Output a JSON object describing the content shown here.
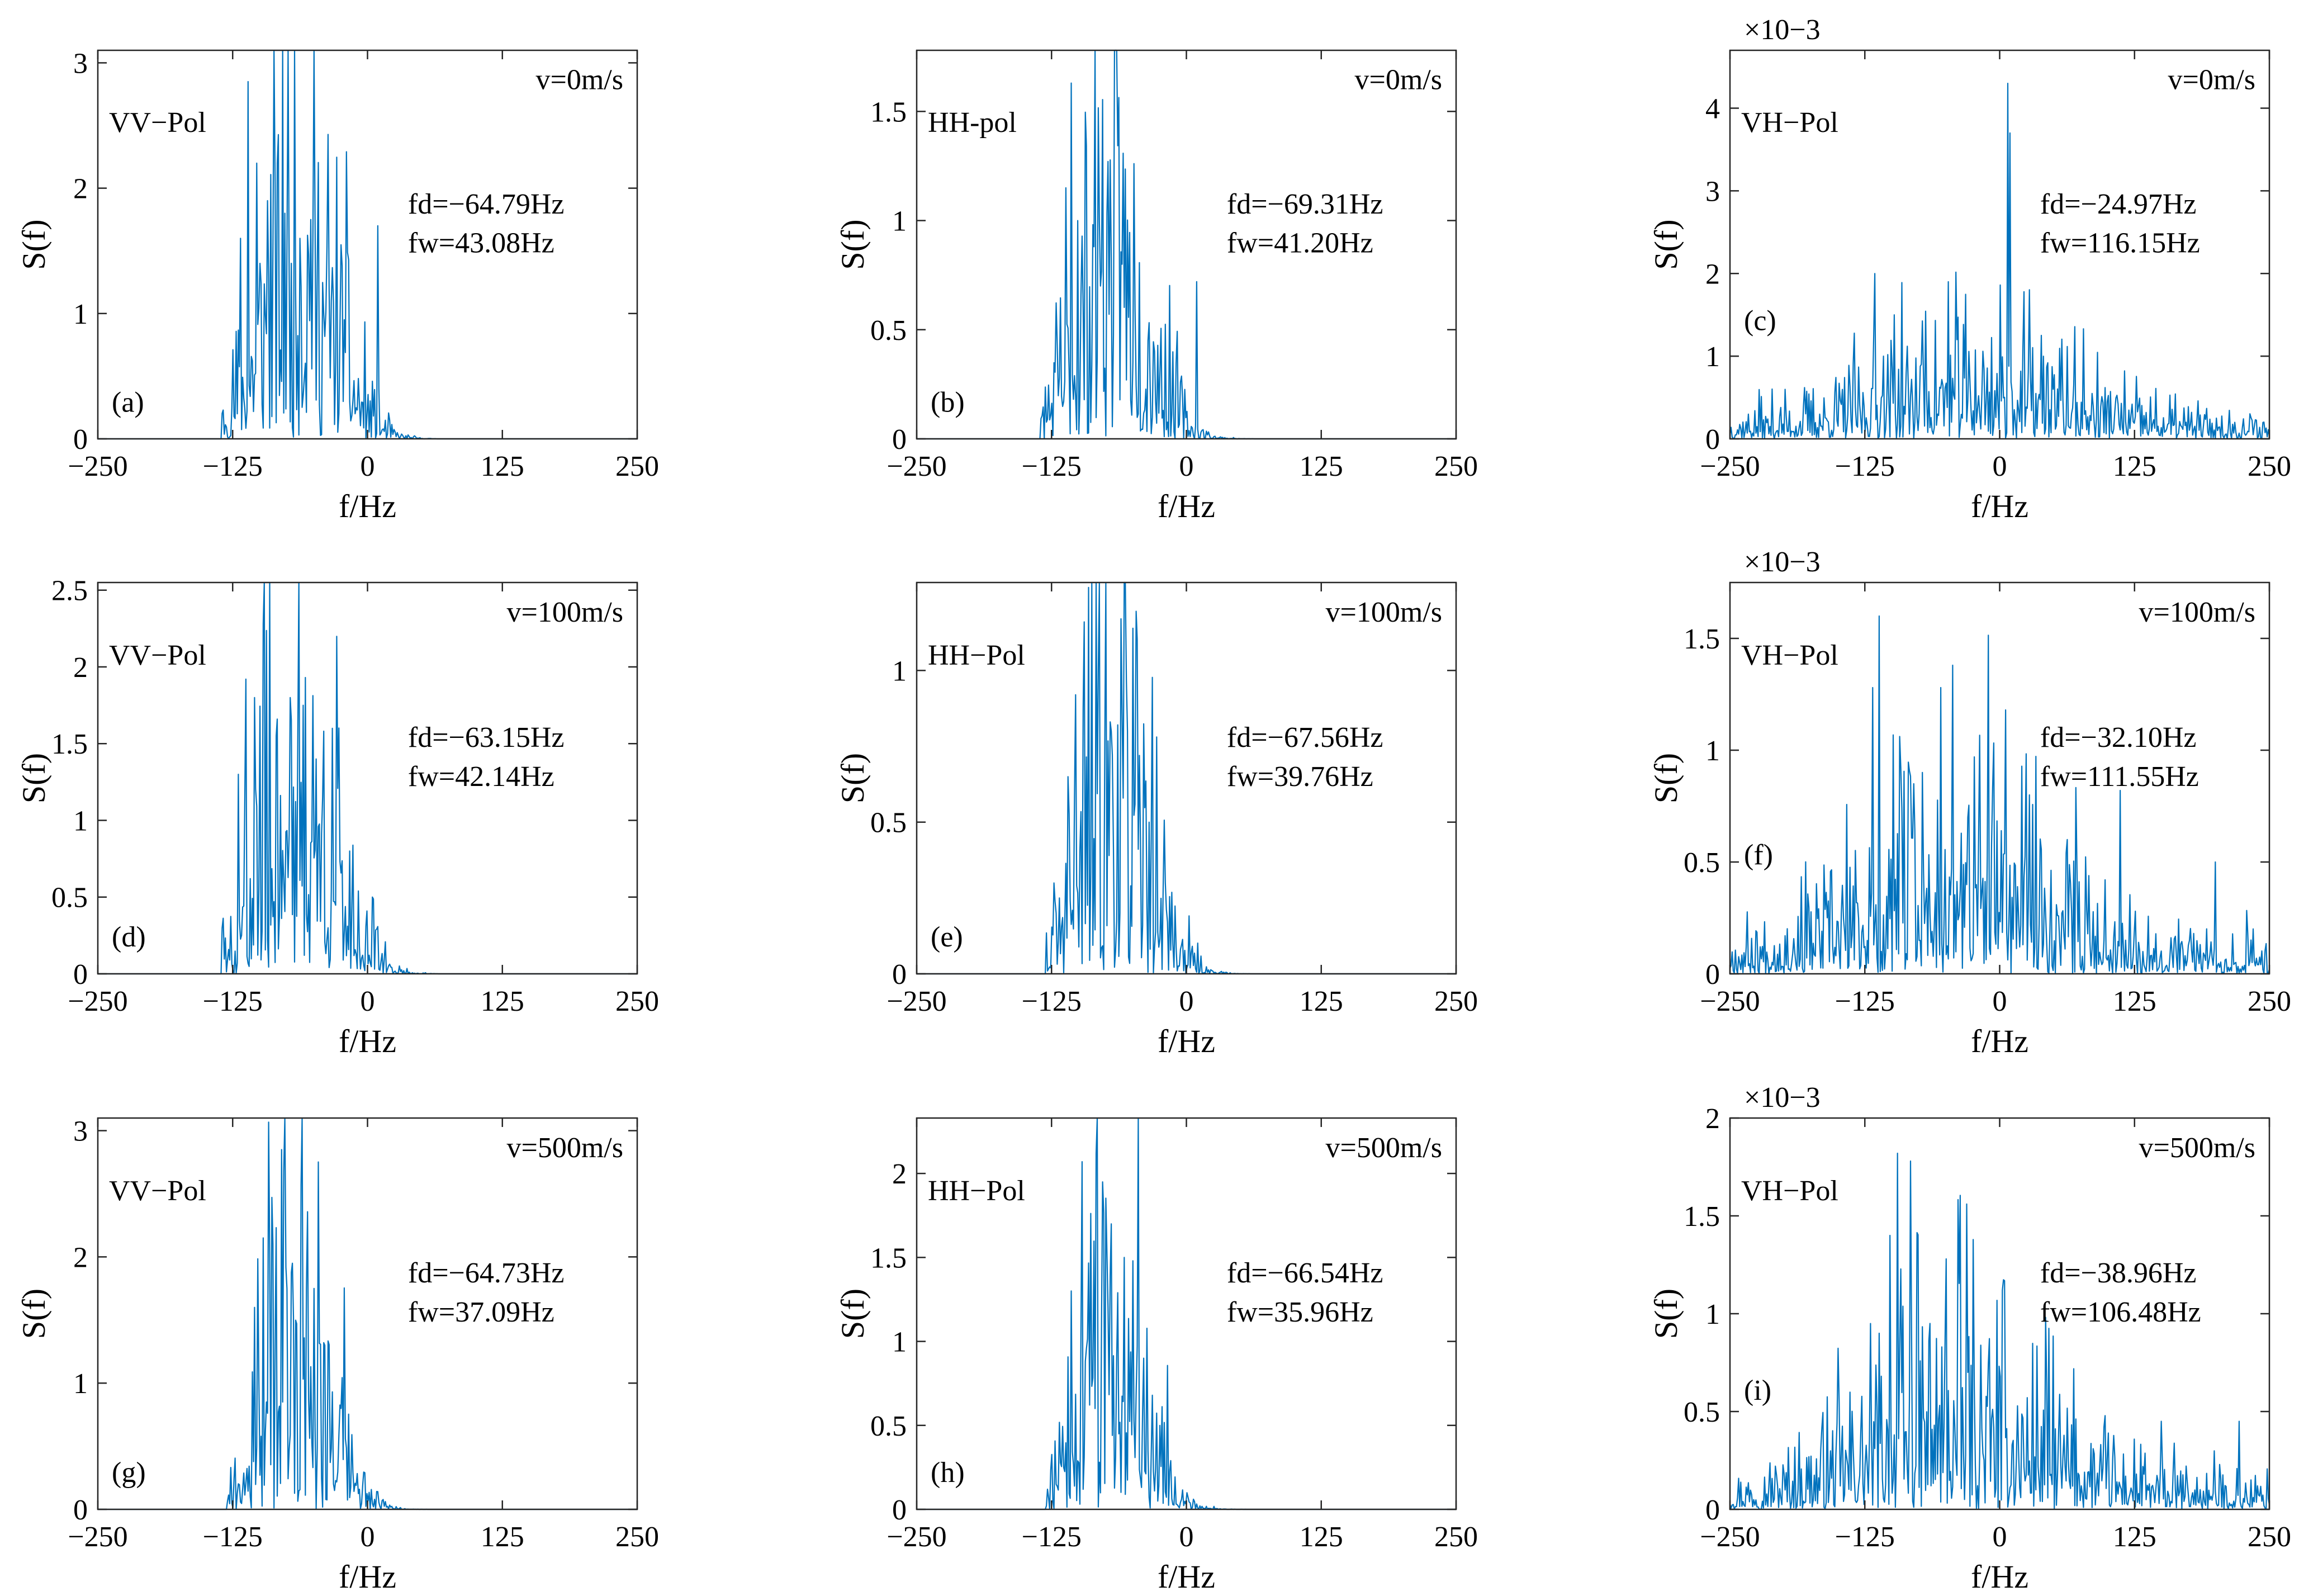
{
  "figure": {
    "type": "grid",
    "rows": 3,
    "cols": 3
  },
  "chart_data": [
    {
      "panel": "a",
      "type": "line",
      "pol_label": "VV−Pol",
      "panel_label": "(a)",
      "velocity": "v=0m/s",
      "fd": "fd=−64.79Hz",
      "fw": "fw=43.08Hz",
      "xlabel": "f/Hz",
      "ylabel": "S(f)",
      "xlim": [
        -250,
        250
      ],
      "ylim": [
        0,
        3.1
      ],
      "xticks": [
        -250,
        -125,
        0,
        125,
        250
      ],
      "xticklabels": [
        "−250",
        "−125",
        "0",
        "125",
        "250"
      ],
      "yticks": [
        0,
        1,
        2,
        3
      ],
      "yticklabels": [
        "0",
        "1",
        "2",
        "3"
      ],
      "exponent": "",
      "spectrum": {
        "center": -65,
        "width": 43,
        "peak": 2.85,
        "floor": 0.0,
        "support": [
          -135,
          65
        ],
        "seed": 11,
        "spikes": [
          [
            -111,
            2.85
          ],
          [
            -103,
            2.2
          ],
          [
            -84,
            2.2
          ],
          [
            -93,
            1.9
          ],
          [
            -77,
            1.8
          ],
          [
            -63,
            1.6
          ],
          [
            -53,
            1.75
          ],
          [
            -36,
            1.2
          ],
          [
            -22,
            0.95
          ],
          [
            10,
            1.7
          ],
          [
            -118,
            1.6
          ],
          [
            -100,
            1.4
          ],
          [
            -71,
            1.4
          ]
        ]
      }
    },
    {
      "panel": "b",
      "type": "line",
      "pol_label": "HH-pol",
      "panel_label": "(b)",
      "velocity": "v=0m/s",
      "fd": "fd=−69.31Hz",
      "fw": "fw=41.20Hz",
      "xlabel": "f/Hz",
      "ylabel": "S(f)",
      "xlim": [
        -250,
        250
      ],
      "ylim": [
        0,
        1.78
      ],
      "xticks": [
        -250,
        -125,
        0,
        125,
        250
      ],
      "xticklabels": [
        "−250",
        "−125",
        "0",
        "125",
        "250"
      ],
      "yticks": [
        0,
        0.5,
        1,
        1.5
      ],
      "yticklabels": [
        "0",
        "0.5",
        "1",
        "1.5"
      ],
      "exponent": "",
      "spectrum": {
        "center": -69,
        "width": 41,
        "peak": 1.63,
        "floor": 0.0,
        "support": [
          -135,
          62
        ],
        "seed": 23,
        "spikes": [
          [
            -107,
            1.63
          ],
          [
            -112,
            1.15
          ],
          [
            -101,
            1.0
          ],
          [
            -86,
            0.88
          ],
          [
            -70,
            0.82
          ],
          [
            -60,
            0.8
          ],
          [
            -80,
            0.7
          ],
          [
            -48,
            0.6
          ],
          [
            10,
            0.72
          ],
          [
            -30,
            0.4
          ]
        ]
      }
    },
    {
      "panel": "c",
      "type": "line",
      "pol_label": "VH−Pol",
      "panel_label": "(c)",
      "velocity": "v=0m/s",
      "fd": "fd=−24.97Hz",
      "fw": "fw=116.15Hz",
      "xlabel": "f/Hz",
      "ylabel": "S(f)",
      "xlim": [
        -250,
        250
      ],
      "ylim": [
        0,
        0.0047
      ],
      "xticks": [
        -250,
        -125,
        0,
        125,
        250
      ],
      "xticklabels": [
        "−250",
        "−125",
        "0",
        "125",
        "250"
      ],
      "yticks": [
        0,
        0.001,
        0.002,
        0.003,
        0.004
      ],
      "yticklabels": [
        "0",
        "1",
        "2",
        "3",
        "4"
      ],
      "exponent": "×10−3",
      "spectrum": {
        "center": -25,
        "width": 116,
        "peak": 0.0009,
        "floor": 0.00022,
        "support": [
          -250,
          250
        ],
        "seed": 37,
        "spikes": [
          [
            8,
            0.0043
          ],
          [
            10,
            0.0037
          ],
          [
            -116,
            0.002
          ],
          [
            -48,
            0.0019
          ],
          [
            -98,
            0.0015
          ],
          [
            -108,
            0.001
          ],
          [
            -40,
            0.0012
          ],
          [
            -73,
            0.0009
          ],
          [
            -28,
            0.0007
          ],
          [
            50,
            0.0006
          ]
        ]
      }
    },
    {
      "panel": "d",
      "type": "line",
      "pol_label": "VV−Pol",
      "panel_label": "(d)",
      "velocity": "v=100m/s",
      "fd": "fd=−63.15Hz",
      "fw": "fw=42.14Hz",
      "xlabel": "f/Hz",
      "ylabel": "S(f)",
      "xlim": [
        -250,
        250
      ],
      "ylim": [
        0,
        2.55
      ],
      "xticks": [
        -250,
        -125,
        0,
        125,
        250
      ],
      "xticklabels": [
        "−250",
        "−125",
        "0",
        "125",
        "250"
      ],
      "yticks": [
        0,
        0.5,
        1,
        1.5,
        2,
        2.5
      ],
      "yticklabels": [
        "0",
        "0.5",
        "1",
        "1.5",
        "2",
        "2.5"
      ],
      "exponent": "",
      "spectrum": {
        "center": -63,
        "width": 42,
        "peak": 2.28,
        "floor": 0.0,
        "support": [
          -135,
          65
        ],
        "seed": 41,
        "spikes": [
          [
            -97,
            2.28
          ],
          [
            -113,
            1.92
          ],
          [
            -105,
            1.8
          ],
          [
            -72,
            1.8
          ],
          [
            -60,
            1.75
          ],
          [
            -85,
            1.55
          ],
          [
            -33,
            1.6
          ],
          [
            -48,
            1.4
          ],
          [
            -120,
            1.3
          ],
          [
            -17,
            0.8
          ],
          [
            5,
            0.5
          ]
        ]
      }
    },
    {
      "panel": "e",
      "type": "line",
      "pol_label": "HH−Pol",
      "panel_label": "(e)",
      "velocity": "v=100m/s",
      "fd": "fd=−67.56Hz",
      "fw": "fw=39.76Hz",
      "xlabel": "f/Hz",
      "ylabel": "S(f)",
      "xlim": [
        -250,
        250
      ],
      "ylim": [
        0,
        1.29
      ],
      "xticks": [
        -250,
        -125,
        0,
        125,
        250
      ],
      "xticklabels": [
        "−250",
        "−125",
        "0",
        "125",
        "250"
      ],
      "yticks": [
        0,
        0.5,
        1
      ],
      "yticklabels": [
        "0",
        "0.5",
        "1"
      ],
      "exponent": "",
      "spectrum": {
        "center": -67,
        "width": 40,
        "peak": 1.16,
        "floor": 0.0,
        "support": [
          -130,
          60
        ],
        "seed": 53,
        "spikes": [
          [
            -95,
            1.16
          ],
          [
            -82,
            1.0
          ],
          [
            -103,
            0.92
          ],
          [
            -70,
            0.8
          ],
          [
            -55,
            0.8
          ],
          [
            -44,
            0.72
          ],
          [
            -110,
            0.65
          ],
          [
            -35,
            0.5
          ],
          [
            -20,
            0.3
          ]
        ]
      }
    },
    {
      "panel": "f",
      "type": "line",
      "pol_label": "VH−Pol",
      "panel_label": "(f)",
      "velocity": "v=100m/s",
      "fd": "fd=−32.10Hz",
      "fw": "fw=111.55Hz",
      "xlabel": "f/Hz",
      "ylabel": "S(f)",
      "xlim": [
        -250,
        250
      ],
      "ylim": [
        0,
        0.00175
      ],
      "xticks": [
        -250,
        -125,
        0,
        125,
        250
      ],
      "xticklabels": [
        "−250",
        "−125",
        "0",
        "125",
        "250"
      ],
      "yticks": [
        0,
        0.0005,
        0.001,
        0.0015
      ],
      "yticklabels": [
        "0",
        "0.5",
        "1",
        "1.5"
      ],
      "exponent": "×10−3",
      "spectrum": {
        "center": -32,
        "width": 112,
        "peak": 0.0006,
        "floor": 0.00013,
        "support": [
          -250,
          250
        ],
        "seed": 67,
        "spikes": [
          [
            -112,
            0.0016
          ],
          [
            -118,
            0.00128
          ],
          [
            -55,
            0.00128
          ],
          [
            -44,
            0.00138
          ],
          [
            6,
            0.00118
          ],
          [
            -92,
            0.00092
          ],
          [
            -80,
            0.00085
          ],
          [
            -30,
            0.0007
          ],
          [
            28,
            0.0008
          ],
          [
            112,
            0.00082
          ],
          [
            200,
            0.0005
          ]
        ]
      }
    },
    {
      "panel": "g",
      "type": "line",
      "pol_label": "VV−Pol",
      "panel_label": "(g)",
      "velocity": "v=500m/s",
      "fd": "fd=−64.73Hz",
      "fw": "fw=37.09Hz",
      "xlabel": "f/Hz",
      "ylabel": "S(f)",
      "xlim": [
        -250,
        250
      ],
      "ylim": [
        0,
        3.1
      ],
      "xticks": [
        -250,
        -125,
        0,
        125,
        250
      ],
      "xticklabels": [
        "−250",
        "−125",
        "0",
        "125",
        "250"
      ],
      "yticks": [
        0,
        1,
        2,
        3
      ],
      "yticklabels": [
        "0",
        "1",
        "2",
        "3"
      ],
      "exponent": "",
      "spectrum": {
        "center": -65,
        "width": 37,
        "peak": 2.85,
        "floor": 0.0,
        "support": [
          -130,
          60
        ],
        "seed": 79,
        "spikes": [
          [
            -80,
            2.85
          ],
          [
            -97,
            2.15
          ],
          [
            -88,
            2.1
          ],
          [
            -70,
            1.95
          ],
          [
            -57,
            1.75
          ],
          [
            -50,
            1.75
          ],
          [
            -105,
            1.6
          ],
          [
            -40,
            1.3
          ],
          [
            -25,
            0.8
          ]
        ]
      }
    },
    {
      "panel": "h",
      "type": "line",
      "pol_label": "HH−Pol",
      "panel_label": "(h)",
      "velocity": "v=500m/s",
      "fd": "fd=−66.54Hz",
      "fw": "fw=35.96Hz",
      "xlabel": "f/Hz",
      "ylabel": "S(f)",
      "xlim": [
        -250,
        250
      ],
      "ylim": [
        0,
        2.33
      ],
      "xticks": [
        -250,
        -125,
        0,
        125,
        250
      ],
      "xticklabels": [
        "−250",
        "−125",
        "0",
        "125",
        "250"
      ],
      "yticks": [
        0,
        0.5,
        1,
        1.5,
        2
      ],
      "yticklabels": [
        "0",
        "0.5",
        "1",
        "1.5",
        "2"
      ],
      "exponent": "",
      "spectrum": {
        "center": -66,
        "width": 36,
        "peak": 2.12,
        "floor": 0.0,
        "support": [
          -130,
          60
        ],
        "seed": 83,
        "spikes": [
          [
            -84,
            2.12
          ],
          [
            -97,
            2.07
          ],
          [
            -78,
            1.95
          ],
          [
            -70,
            1.7
          ],
          [
            -58,
            1.5
          ],
          [
            -50,
            1.48
          ],
          [
            -107,
            1.3
          ],
          [
            -40,
            0.9
          ],
          [
            -25,
            0.5
          ]
        ]
      }
    },
    {
      "panel": "i",
      "type": "line",
      "pol_label": "VH−Pol",
      "panel_label": "(i)",
      "velocity": "v=500m/s",
      "fd": "fd=−38.96Hz",
      "fw": "fw=106.48Hz",
      "xlabel": "f/Hz",
      "ylabel": "S(f)",
      "xlim": [
        -250,
        250
      ],
      "ylim": [
        0,
        0.002
      ],
      "xticks": [
        -250,
        -125,
        0,
        125,
        250
      ],
      "xticklabels": [
        "−250",
        "−125",
        "0",
        "125",
        "250"
      ],
      "yticks": [
        0,
        0.0005,
        0.001,
        0.0015,
        0.002
      ],
      "yticklabels": [
        "0",
        "0.5",
        "1",
        "1.5",
        "2"
      ],
      "exponent": "×10−3",
      "spectrum": {
        "center": -39,
        "width": 106,
        "peak": 0.00065,
        "floor": 0.00013,
        "support": [
          -250,
          250
        ],
        "seed": 97,
        "spikes": [
          [
            -95,
            0.00182
          ],
          [
            -83,
            0.00178
          ],
          [
            -102,
            0.0014
          ],
          [
            -50,
            0.00128
          ],
          [
            -65,
            0.00095
          ],
          [
            -112,
            0.0009
          ],
          [
            -30,
            0.0007
          ],
          [
            0,
            0.00068
          ],
          [
            150,
            0.00045
          ],
          [
            222,
            0.00045
          ]
        ]
      }
    }
  ]
}
